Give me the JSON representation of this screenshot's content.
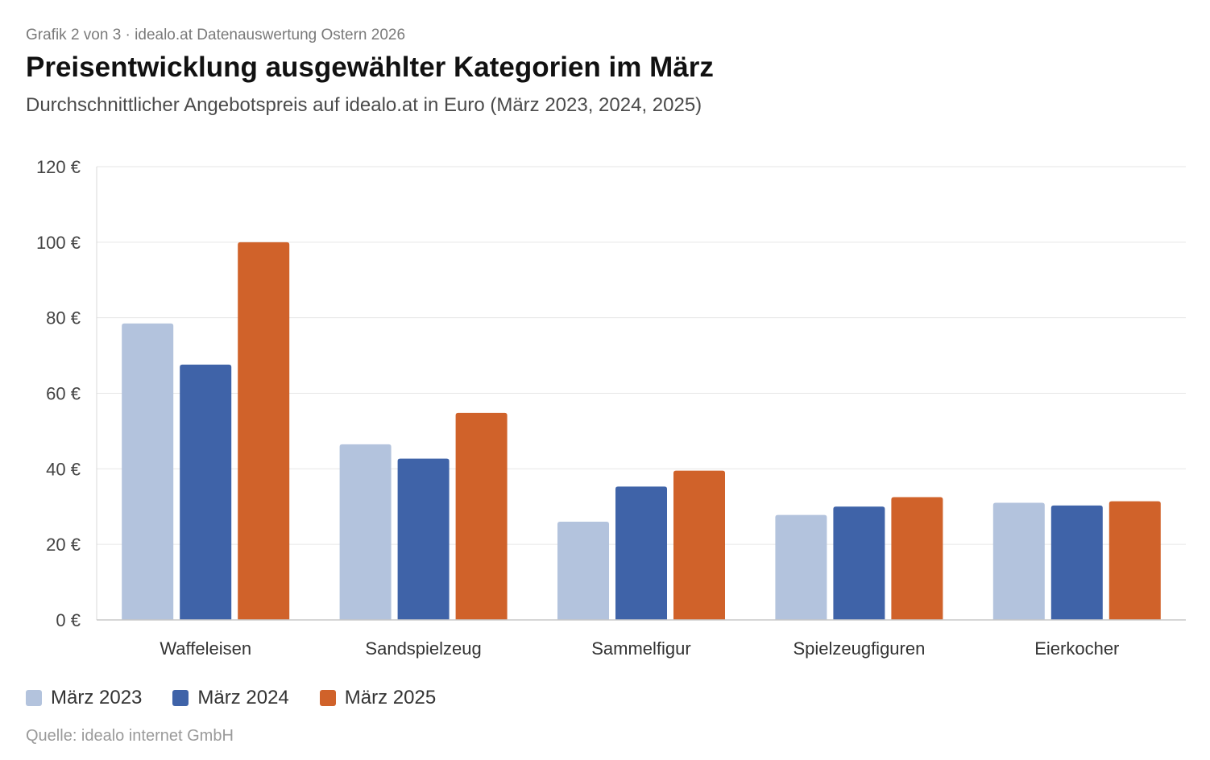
{
  "header": {
    "kicker": "Grafik 2 von 3 · idealo.at Datenauswertung Ostern 2026",
    "title": "Preisentwicklung ausgewählter Kategorien im März",
    "subtitle": "Durchschnittlicher Angebotspreis auf idealo.at in Euro (März 2023, 2024, 2025)"
  },
  "legend": {
    "items": [
      {
        "label": "März 2023",
        "color": "#b3c3dd"
      },
      {
        "label": "März 2024",
        "color": "#3f63a8"
      },
      {
        "label": "März 2025",
        "color": "#d0622a"
      }
    ]
  },
  "footer": {
    "source": "Quelle: idealo internet GmbH"
  },
  "chart_data": {
    "type": "bar",
    "title": "Preisentwicklung ausgewählter Kategorien im März",
    "subtitle": "Durchschnittlicher Angebotspreis auf idealo.at in Euro (März 2023, 2024, 2025)",
    "categories": [
      "Waffeleisen",
      "Sandspielzeug",
      "Sammelfigur",
      "Spielzeugfiguren",
      "Eierkocher"
    ],
    "series": [
      {
        "name": "März 2023",
        "color": "#b3c3dd",
        "values": [
          78.5,
          46.5,
          26,
          27.8,
          31
        ]
      },
      {
        "name": "März 2024",
        "color": "#3f63a8",
        "values": [
          67.6,
          42.7,
          35.3,
          30,
          30.3
        ]
      },
      {
        "name": "März 2025",
        "color": "#d0622a",
        "values": [
          100,
          54.8,
          39.5,
          32.5,
          31.4
        ]
      }
    ],
    "yticks": [
      "0 €",
      "20 €",
      "40 €",
      "60 €",
      "80 €",
      "100 €",
      "120 €"
    ],
    "ylim": [
      0,
      120
    ],
    "ylabel": "",
    "xlabel": "",
    "grid": true,
    "legend_position": "bottom-left"
  }
}
